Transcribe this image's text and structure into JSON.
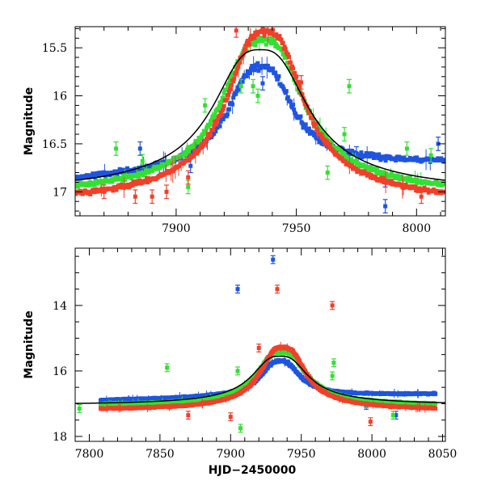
{
  "chart_data": [
    {
      "type": "scatter",
      "panel": "top",
      "xlabel": "",
      "ylabel": "Magnitude",
      "xlim": [
        7858,
        8012
      ],
      "ylim": [
        17.25,
        15.28
      ],
      "y_inverted": true,
      "xticks": [
        7900,
        7950,
        8000
      ],
      "yticks": [
        15.5,
        16,
        16.5,
        17
      ],
      "ytick_labels": [
        "15.5",
        "16",
        "16.5",
        "17"
      ],
      "xtick_labels": [
        "7900",
        "7950",
        "8000"
      ],
      "grid": false,
      "legend": "none",
      "model_curve": {
        "color": "#000000",
        "t0": 7935,
        "peak": 15.52,
        "base": 17.03,
        "tE": 16
      },
      "series": [
        {
          "color": "#1f55e0",
          "base": 16.82,
          "peak": 15.7,
          "slope": -0.0012,
          "t0": 7935,
          "tE": 11,
          "x_from": 7858,
          "x_to": 8012,
          "outliers": [
            [
              7885,
              16.55
            ],
            [
              7893,
              16.75
            ],
            [
              7906,
              16.73
            ],
            [
              7936,
              15.87
            ],
            [
              7975,
              16.6
            ],
            [
              7987,
              16.88
            ],
            [
              7987,
              17.15
            ],
            [
              8009,
              16.5
            ]
          ]
        },
        {
          "color": "#33e033",
          "base": 17.06,
          "peak": 15.42,
          "slope": 0.0,
          "t0": 7936,
          "tE": 14,
          "x_from": 7858,
          "x_to": 8012,
          "outliers": [
            [
              7875,
              16.55
            ],
            [
              7886,
              16.68
            ],
            [
              7905,
              16.95
            ],
            [
              7912,
              16.1
            ],
            [
              7927,
              15.9
            ],
            [
              7932,
              15.9
            ],
            [
              7934,
              16.0
            ],
            [
              7963,
              16.8
            ],
            [
              7970,
              16.4
            ],
            [
              7972,
              15.9
            ],
            [
              7996,
              16.55
            ],
            [
              8006,
              16.62
            ]
          ]
        },
        {
          "color": "#f0402a",
          "base": 17.14,
          "peak": 15.33,
          "slope": 0.0,
          "t0": 7937,
          "tE": 13,
          "x_from": 7858,
          "x_to": 8012,
          "outliers": [
            [
              7870,
              17.0
            ],
            [
              7883,
              17.05
            ],
            [
              7890,
              17.05
            ],
            [
              7896,
              17.0
            ],
            [
              7905,
              16.85
            ],
            [
              7925,
              15.32
            ],
            [
              7952,
              15.86
            ],
            [
              8002,
              17.05
            ]
          ]
        }
      ]
    },
    {
      "type": "scatter",
      "panel": "bottom",
      "xlabel": "HJD−2450000",
      "ylabel": "Magnitude",
      "xlim": [
        7790,
        8052
      ],
      "ylim": [
        18.15,
        12.25
      ],
      "y_inverted": true,
      "xticks": [
        7800,
        7850,
        7900,
        7950,
        8000,
        8050
      ],
      "xtick_labels": [
        "7800",
        "7850",
        "7900",
        "7950",
        "8000",
        "8050"
      ],
      "yticks": [
        14,
        16,
        18
      ],
      "ytick_labels": [
        "14",
        "16",
        "18"
      ],
      "grid": false,
      "legend": "none",
      "model_curve": {
        "color": "#000000",
        "t0": 7935,
        "peak": 15.55,
        "base": 17.05,
        "tE": 16
      },
      "series": [
        {
          "color": "#1f55e0",
          "base": 16.82,
          "peak": 15.7,
          "slope": -0.0008,
          "t0": 7935,
          "tE": 11,
          "x_from": 7808,
          "x_to": 8045,
          "outliers": [
            [
              7905,
              13.5
            ],
            [
              7930,
              12.6
            ],
            [
              7996,
              17.05
            ],
            [
              8017,
              17.35
            ]
          ]
        },
        {
          "color": "#33e033",
          "base": 17.08,
          "peak": 15.42,
          "slope": 0.0,
          "t0": 7936,
          "tE": 14,
          "x_from": 7808,
          "x_to": 8045,
          "outliers": [
            [
              7793,
              17.15
            ],
            [
              7855,
              15.9
            ],
            [
              7905,
              16.0
            ],
            [
              7907,
              17.75
            ],
            [
              7972,
              16.15
            ],
            [
              7973,
              15.75
            ],
            [
              7996,
              17.0
            ],
            [
              8015,
              17.35
            ]
          ]
        },
        {
          "color": "#f0402a",
          "base": 17.22,
          "peak": 15.28,
          "slope": 0.0,
          "t0": 7937,
          "tE": 13,
          "x_from": 7808,
          "x_to": 8045,
          "outliers": [
            [
              7933,
              13.5
            ],
            [
              7972,
              14.0
            ],
            [
              7999,
              17.55
            ],
            [
              7870,
              17.35
            ],
            [
              7900,
              17.4
            ],
            [
              7920,
              15.3
            ]
          ]
        }
      ]
    }
  ]
}
